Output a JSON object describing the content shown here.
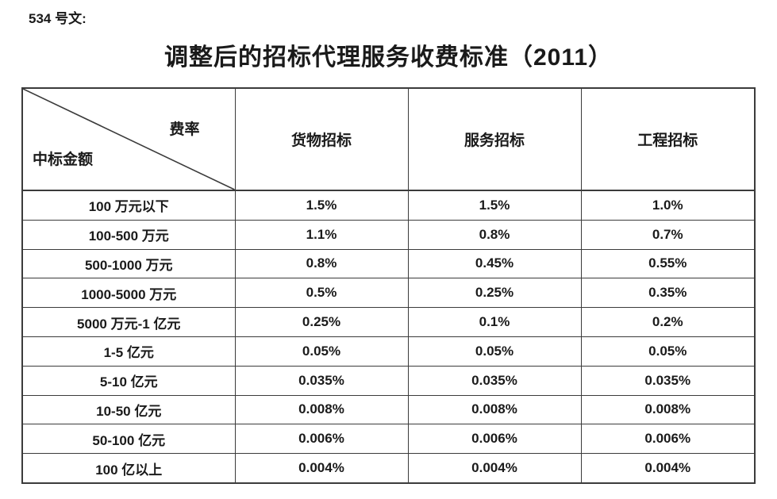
{
  "doc_label": "534 号文:",
  "title": "调整后的招标代理服务收费标准（2011）",
  "table": {
    "corner": {
      "top_right": "费率",
      "bottom_left": "中标金额"
    },
    "columns": [
      "货物招标",
      "服务招标",
      "工程招标"
    ],
    "rows": [
      {
        "label": "100 万元以下",
        "values": [
          "1.5%",
          "1.5%",
          "1.0%"
        ]
      },
      {
        "label": "100-500 万元",
        "values": [
          "1.1%",
          "0.8%",
          "0.7%"
        ]
      },
      {
        "label": "500-1000 万元",
        "values": [
          "0.8%",
          "0.45%",
          "0.55%"
        ]
      },
      {
        "label": "1000-5000 万元",
        "values": [
          "0.5%",
          "0.25%",
          "0.35%"
        ]
      },
      {
        "label": "5000 万元-1 亿元",
        "values": [
          "0.25%",
          "0.1%",
          "0.2%"
        ]
      },
      {
        "label": "1-5 亿元",
        "values": [
          "0.05%",
          "0.05%",
          "0.05%"
        ]
      },
      {
        "label": "5-10 亿元",
        "values": [
          "0.035%",
          "0.035%",
          "0.035%"
        ]
      },
      {
        "label": "10-50 亿元",
        "values": [
          "0.008%",
          "0.008%",
          "0.008%"
        ]
      },
      {
        "label": "50-100 亿元",
        "values": [
          "0.006%",
          "0.006%",
          "0.006%"
        ]
      },
      {
        "label": "100 亿以上",
        "values": [
          "0.004%",
          "0.004%",
          "0.004%"
        ]
      }
    ]
  },
  "colors": {
    "text": "#1a1a1a",
    "border": "#3b3b3b",
    "background": "#ffffff"
  }
}
